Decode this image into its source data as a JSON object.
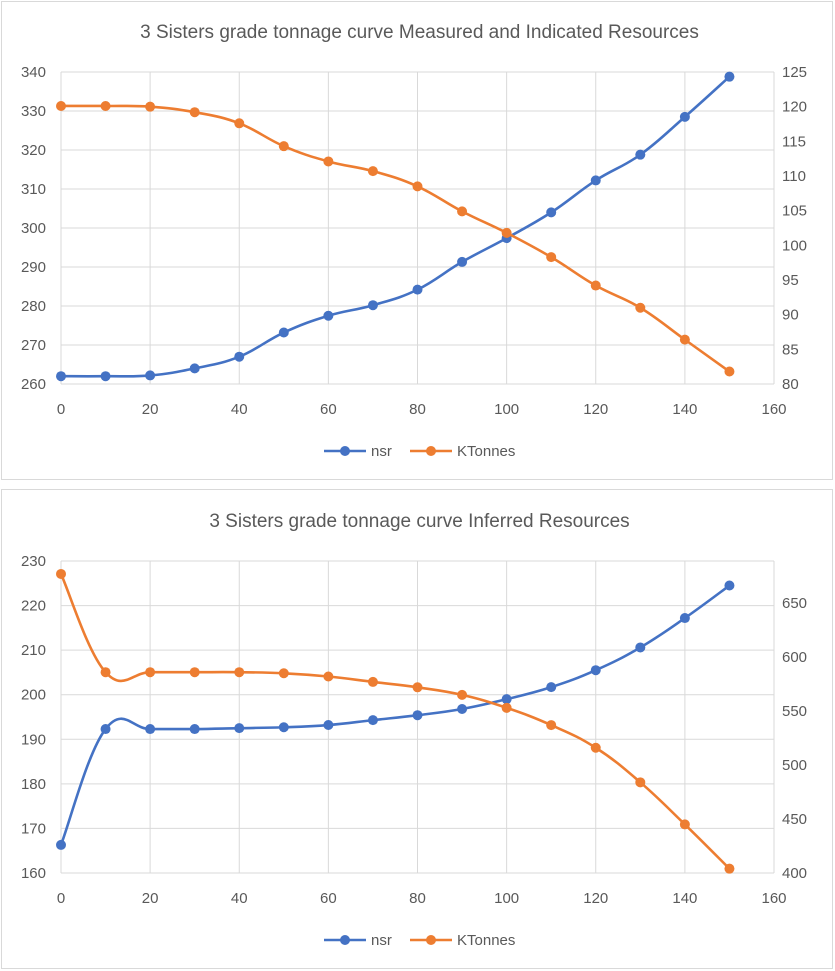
{
  "colors": {
    "nsr": "#4472C4",
    "ktonnes": "#ED7D31",
    "grid": "#d9d9d9",
    "text": "#595959"
  },
  "chart_data": [
    {
      "type": "line",
      "title": "3 Sisters grade tonnage curve Measured and Indicated Resources",
      "x": [
        0,
        10,
        20,
        30,
        40,
        50,
        60,
        70,
        80,
        90,
        100,
        110,
        120,
        130,
        140,
        150
      ],
      "xlim": [
        0,
        160
      ],
      "xticks": [
        "0",
        "20",
        "40",
        "60",
        "80",
        "100",
        "120",
        "140",
        "160"
      ],
      "y_left": {
        "min": 260,
        "max": 340,
        "ticks": [
          "260",
          "270",
          "280",
          "290",
          "300",
          "310",
          "320",
          "330",
          "340"
        ]
      },
      "y_right": {
        "min": 80,
        "max": 125,
        "ticks": [
          "80",
          "85",
          "90",
          "95",
          "100",
          "105",
          "110",
          "115",
          "120",
          "125"
        ]
      },
      "series": [
        {
          "name": "nsr",
          "axis": "left",
          "values": [
            262,
            262,
            262.2,
            264,
            267,
            273.2,
            277.5,
            280.2,
            284.2,
            291.3,
            297.4,
            304,
            312.2,
            318.8,
            328.5,
            338.8
          ]
        },
        {
          "name": "KTonnes",
          "axis": "right",
          "values": [
            120.1,
            120.1,
            120,
            119.2,
            117.6,
            114.3,
            112.1,
            110.7,
            108.5,
            104.9,
            101.8,
            98.3,
            94.2,
            91,
            86.4,
            81.8
          ]
        }
      ],
      "legend": [
        "nsr",
        "KTonnes"
      ],
      "legend_position": "bottom"
    },
    {
      "type": "line",
      "title": "3 Sisters grade tonnage curve Inferred Resources",
      "x": [
        0,
        10,
        20,
        30,
        40,
        50,
        60,
        70,
        80,
        90,
        100,
        110,
        120,
        130,
        140,
        150
      ],
      "xlim": [
        0,
        160
      ],
      "xticks": [
        "0",
        "20",
        "40",
        "60",
        "80",
        "100",
        "120",
        "140",
        "160"
      ],
      "y_left": {
        "min": 160,
        "max": 230,
        "ticks": [
          "160",
          "170",
          "180",
          "190",
          "200",
          "210",
          "220",
          "230"
        ]
      },
      "y_right": {
        "min": 400,
        "max": 689,
        "ticks": [
          "400",
          "450",
          "500",
          "550",
          "600",
          "650"
        ]
      },
      "series": [
        {
          "name": "nsr",
          "axis": "left",
          "values": [
            166.3,
            192.3,
            192.3,
            192.3,
            192.5,
            192.7,
            193.2,
            194.3,
            195.4,
            196.8,
            199,
            201.7,
            205.5,
            210.6,
            217.2,
            224.5
          ]
        },
        {
          "name": "KTonnes",
          "axis": "right",
          "values": [
            677,
            586,
            586,
            586,
            586,
            585,
            582,
            577,
            572,
            565,
            553,
            537,
            516,
            484,
            445,
            404
          ]
        }
      ],
      "legend": [
        "nsr",
        "KTonnes"
      ],
      "legend_position": "bottom"
    }
  ]
}
